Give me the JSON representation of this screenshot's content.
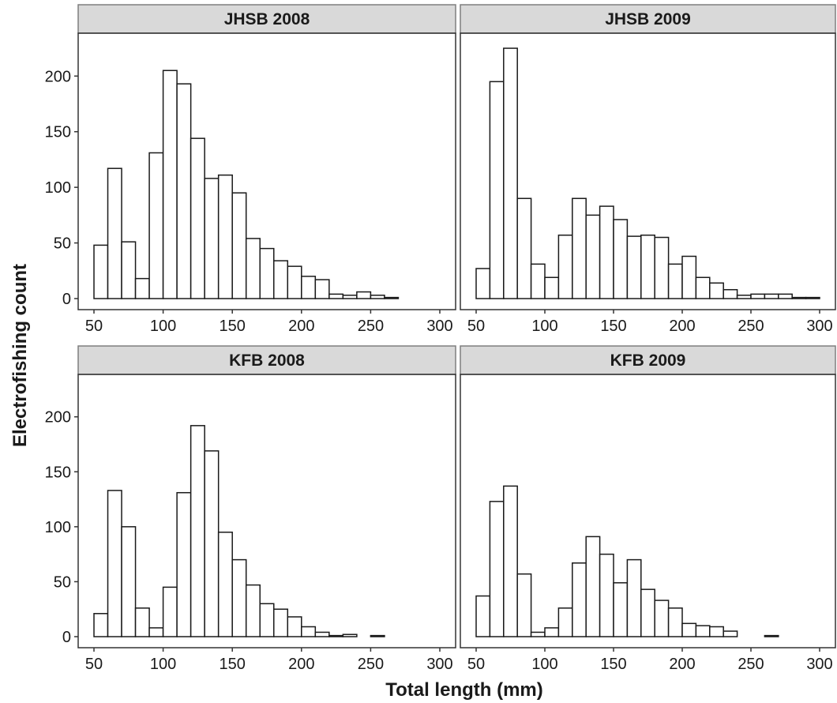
{
  "chart_data": {
    "type": "bar",
    "xlabel": "Total length (mm)",
    "ylabel": "Electrofishing count",
    "xlim": [
      50,
      300
    ],
    "ylim": [
      0,
      235
    ],
    "x_ticks": [
      50,
      100,
      150,
      200,
      250,
      300
    ],
    "y_ticks": [
      0,
      50,
      100,
      150,
      200
    ],
    "bin_edges": [
      50,
      60,
      70,
      80,
      90,
      100,
      110,
      120,
      130,
      140,
      150,
      160,
      170,
      180,
      190,
      200,
      210,
      220,
      230,
      240,
      250,
      260,
      270,
      280,
      290,
      300
    ],
    "bar_fill": "#ffffff",
    "bar_stroke": "#1a1a1a",
    "strip_fill": "#d9d9d9",
    "grid": false,
    "panels": [
      {
        "title": "JHSB 2008",
        "values": [
          48,
          117,
          51,
          18,
          131,
          205,
          193,
          144,
          108,
          111,
          95,
          54,
          45,
          34,
          29,
          20,
          17,
          4,
          3,
          6,
          3,
          1,
          0,
          0,
          0
        ]
      },
      {
        "title": "JHSB 2009",
        "values": [
          27,
          195,
          225,
          90,
          31,
          19,
          57,
          90,
          75,
          83,
          71,
          56,
          57,
          55,
          31,
          38,
          19,
          14,
          8,
          3,
          4,
          4,
          4,
          1,
          1
        ]
      },
      {
        "title": "KFB 2008",
        "values": [
          21,
          133,
          100,
          26,
          8,
          45,
          131,
          192,
          169,
          95,
          70,
          47,
          30,
          25,
          18,
          9,
          4,
          1,
          2,
          0,
          1,
          0,
          0,
          0,
          0
        ]
      },
      {
        "title": "KFB 2009",
        "values": [
          37,
          123,
          137,
          57,
          4,
          8,
          26,
          67,
          91,
          75,
          49,
          70,
          43,
          33,
          26,
          12,
          10,
          9,
          5,
          0,
          0,
          1,
          0,
          0,
          0
        ]
      }
    ]
  }
}
